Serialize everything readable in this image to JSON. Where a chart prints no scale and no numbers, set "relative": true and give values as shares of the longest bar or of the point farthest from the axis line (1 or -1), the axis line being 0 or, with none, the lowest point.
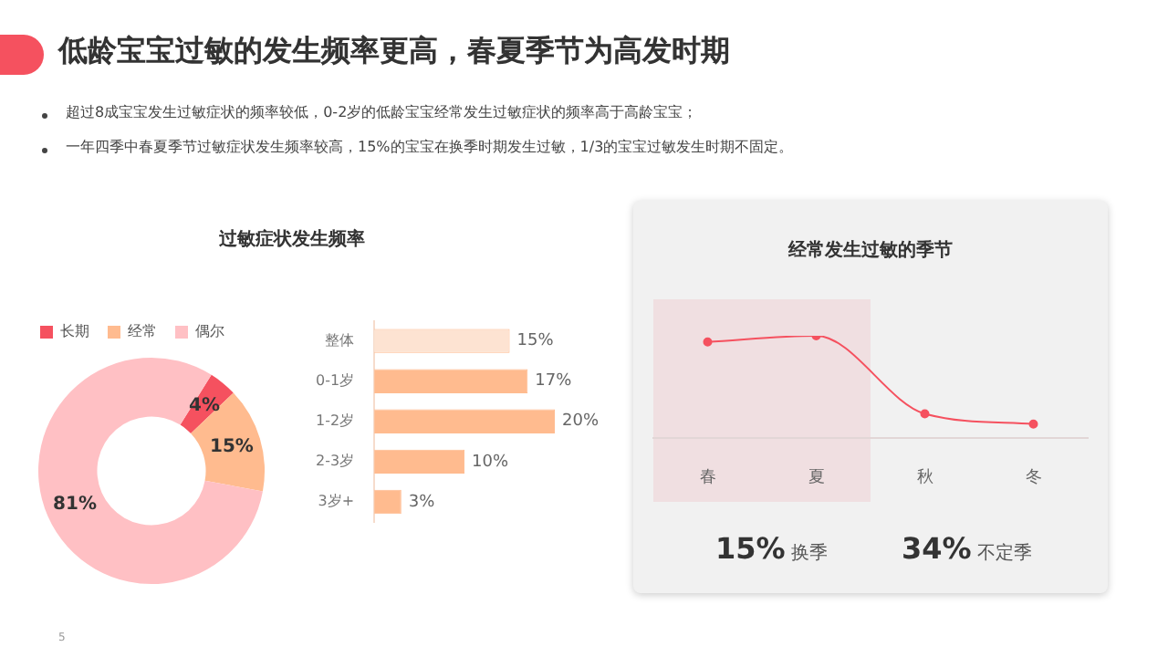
{
  "chart_data": [
    {
      "type": "donut",
      "title": "过敏症状发生频率",
      "categories": [
        "长期",
        "经常",
        "偶尔"
      ],
      "values": [
        4,
        15,
        81
      ],
      "colors": [
        "#f5515f",
        "#ffbb8f",
        "#ffc0c4"
      ],
      "legend": "top left",
      "value_labels": [
        "4%",
        "15%",
        "81%"
      ],
      "annotations": [
        "低龄宝宝过敏的发生频率更高，春夏季节为高发时期",
        "超过8成宝宝发生过敏症状的频率较低，0-2岁的低龄宝宝经常发生过敏症状的频率高于高龄宝宝；",
        "一年四季中春夏季节过敏症状发生频率较高，15%的宝宝在换季时期发生过敏，1/3的宝宝过敏发生时期不固定。",
        "5"
      ]
    },
    {
      "type": "bar",
      "orientation": "horizontal",
      "categories": [
        "整体",
        "0-1岁",
        "1-2岁",
        "2-3岁",
        "3岁+"
      ],
      "values": [
        15,
        17,
        20,
        10,
        3
      ],
      "colors": [
        "#fde3d2",
        "#ffbb8f",
        "#ffbb8f",
        "#ffbb8f",
        "#ffbb8f"
      ],
      "value_labels": [
        "15%",
        "17%",
        "20%",
        "10%",
        "3%"
      ],
      "tick_labels": "y"
    },
    {
      "type": "line",
      "title": "经常发生过敏的季节",
      "categories": [
        "春",
        "夏",
        "秋",
        "冬"
      ],
      "relative": true,
      "series": [
        {
          "color": "#f5515f",
          "values": [
            0.94,
            1,
            0.24,
            0.14
          ]
        }
      ],
      "marker": "circle",
      "bands": [
        {
          "axis": "x",
          "from": "春",
          "to": "夏",
          "color": "#f0dfe1"
        }
      ],
      "annotations": [
        "15% 换季",
        "34% 不定季"
      ]
    }
  ]
}
